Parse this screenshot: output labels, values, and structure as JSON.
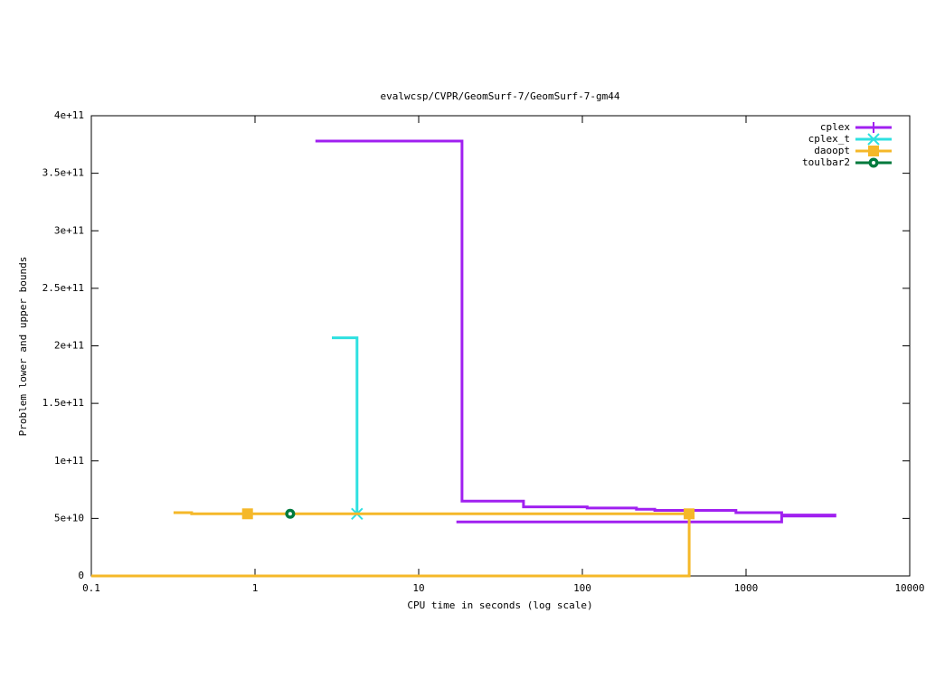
{
  "chart_data": {
    "type": "line",
    "title": "evalwcsp/CVPR/GeomSurf-7/GeomSurf-7-gm44",
    "xlabel": "CPU time in seconds (log scale)",
    "ylabel": "Problem lower and upper bounds",
    "xlog": true,
    "xlim": [
      0.1,
      10000
    ],
    "ylim": [
      0,
      400000000000
    ],
    "xticks": [
      0.1,
      1,
      10,
      100,
      1000,
      10000
    ],
    "yticks": [
      0,
      {
        "value": 50000000000,
        "label": "5e+10"
      },
      {
        "value": 100000000000,
        "label": "1e+11"
      },
      {
        "value": 150000000000,
        "label": "1.5e+11"
      },
      {
        "value": 200000000000,
        "label": "2e+11"
      },
      {
        "value": 250000000000,
        "label": "2.5e+11"
      },
      {
        "value": 300000000000,
        "label": "3e+11"
      },
      {
        "value": 350000000000,
        "label": "3.5e+11"
      },
      {
        "value": 400000000000,
        "label": "4e+11"
      }
    ],
    "legend": "top-right",
    "series": [
      {
        "name": "cplex",
        "color": "#a020f0",
        "marker": "plus",
        "x": [
          2.34,
          18.4,
          18.4,
          43.7,
          43.7,
          107,
          107,
          214,
          214,
          277,
          277,
          867,
          867,
          1650,
          1650,
          3560,
          null,
          17,
          1650,
          1650,
          3560
        ],
        "values": [
          378000000000,
          378000000000,
          65000000000,
          65000000000,
          60000000000,
          60000000000,
          59000000000,
          59000000000,
          58000000000,
          58000000000,
          57000000000,
          57000000000,
          55000000000,
          55000000000,
          53000000000,
          53000000000,
          null,
          47000000000,
          47000000000,
          52000000000,
          52000000000
        ],
        "points": {
          "x": [],
          "values": []
        }
      },
      {
        "name": "cplex_t",
        "color": "#2ee0e0",
        "marker": "star",
        "x": [
          2.95,
          4.2,
          4.2
        ],
        "values": [
          207000000000,
          207000000000,
          54000000000
        ],
        "points": {
          "x": [
            4.2
          ],
          "values": [
            54000000000
          ]
        }
      },
      {
        "name": "daoopt",
        "color": "#f5b829",
        "marker": "square",
        "x": [
          0.318,
          0.41,
          0.41,
          449,
          null,
          0.1,
          449,
          449
        ],
        "values": [
          55000000000,
          55000000000,
          54000000000,
          54000000000,
          null,
          0,
          0,
          54000000000
        ],
        "points": {
          "x": [
            0.9,
            449
          ],
          "values": [
            54000000000,
            54000000000
          ]
        }
      },
      {
        "name": "toulbar2",
        "color": "#007a3d",
        "marker": "circle",
        "x": [],
        "values": [],
        "points": {
          "x": [
            1.64
          ],
          "values": [
            54000000000
          ]
        }
      }
    ]
  }
}
